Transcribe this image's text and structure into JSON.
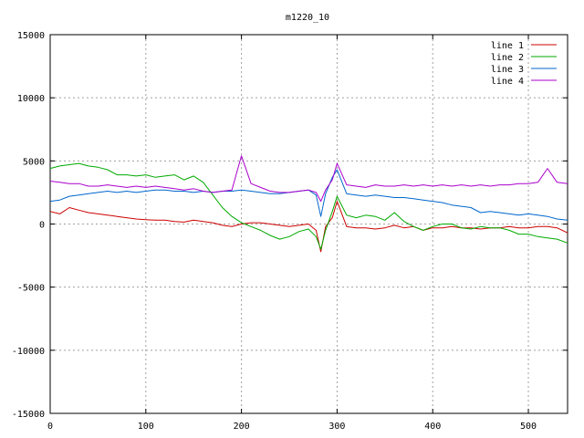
{
  "chart_data": {
    "type": "line",
    "title": "m1220_10",
    "xlabel": "",
    "ylabel": "",
    "xlim": [
      0,
      541
    ],
    "ylim": [
      -15000,
      15000
    ],
    "x_ticks": [
      0,
      100,
      200,
      300,
      400,
      500
    ],
    "y_ticks": [
      -15000,
      -10000,
      -5000,
      0,
      5000,
      10000,
      15000
    ],
    "grid": true,
    "legend_position": "top-right",
    "x": [
      0,
      10,
      20,
      30,
      40,
      50,
      60,
      70,
      80,
      90,
      100,
      110,
      120,
      130,
      140,
      150,
      160,
      170,
      180,
      190,
      200,
      210,
      220,
      230,
      240,
      250,
      260,
      270,
      278,
      283,
      288,
      295,
      300,
      310,
      320,
      330,
      340,
      350,
      360,
      370,
      380,
      390,
      400,
      410,
      420,
      430,
      440,
      450,
      460,
      470,
      480,
      490,
      500,
      510,
      520,
      530,
      541
    ],
    "series": [
      {
        "name": "line 1",
        "color": "#cc0000",
        "values": [
          1000,
          800,
          1300,
          1100,
          900,
          800,
          700,
          600,
          500,
          400,
          350,
          300,
          300,
          200,
          150,
          300,
          200,
          100,
          -100,
          -200,
          0,
          100,
          100,
          0,
          -100,
          -200,
          -100,
          0,
          -500,
          -2200,
          -200,
          500,
          1800,
          -200,
          -300,
          -300,
          -400,
          -300,
          -100,
          -300,
          -200,
          -500,
          -300,
          -300,
          -200,
          -300,
          -300,
          -400,
          -300,
          -300,
          -200,
          -300,
          -300,
          -200,
          -200,
          -300,
          -700
        ]
      },
      {
        "name": "line 2",
        "color": "#00aa00",
        "values": [
          4400,
          4600,
          4700,
          4800,
          4600,
          4500,
          4300,
          3900,
          3900,
          3800,
          3900,
          3700,
          3800,
          3900,
          3500,
          3800,
          3300,
          2300,
          1300,
          600,
          100,
          -200,
          -500,
          -900,
          -1200,
          -1000,
          -600,
          -400,
          -1000,
          -2000,
          -500,
          1000,
          2200,
          700,
          500,
          700,
          600,
          300,
          900,
          200,
          -200,
          -500,
          -200,
          0,
          0,
          -300,
          -400,
          -200,
          -300,
          -300,
          -500,
          -800,
          -800,
          -1000,
          -1100,
          -1200,
          -1500
        ]
      },
      {
        "name": "line 3",
        "color": "#0066cc",
        "values": [
          1800,
          1900,
          2200,
          2300,
          2400,
          2500,
          2600,
          2500,
          2600,
          2500,
          2600,
          2700,
          2700,
          2600,
          2600,
          2500,
          2600,
          2500,
          2600,
          2600,
          2700,
          2600,
          2500,
          2400,
          2400,
          2500,
          2600,
          2700,
          2300,
          600,
          2400,
          3700,
          4300,
          2400,
          2300,
          2200,
          2300,
          2200,
          2100,
          2100,
          2000,
          1900,
          1800,
          1700,
          1500,
          1400,
          1300,
          900,
          1000,
          900,
          800,
          700,
          800,
          700,
          600,
          400,
          300
        ]
      },
      {
        "name": "line 4",
        "color": "#aa00cc",
        "values": [
          3400,
          3300,
          3200,
          3200,
          3000,
          3000,
          3100,
          3000,
          2900,
          3000,
          2900,
          3000,
          2900,
          2800,
          2700,
          2800,
          2600,
          2500,
          2600,
          2700,
          5400,
          3200,
          2900,
          2600,
          2500,
          2500,
          2600,
          2700,
          2500,
          1800,
          2700,
          3500,
          4800,
          3100,
          3000,
          2900,
          3100,
          3000,
          3000,
          3100,
          3000,
          3100,
          3000,
          3100,
          3000,
          3100,
          3000,
          3100,
          3000,
          3100,
          3100,
          3200,
          3200,
          3300,
          4400,
          3300,
          3200
        ]
      }
    ]
  }
}
